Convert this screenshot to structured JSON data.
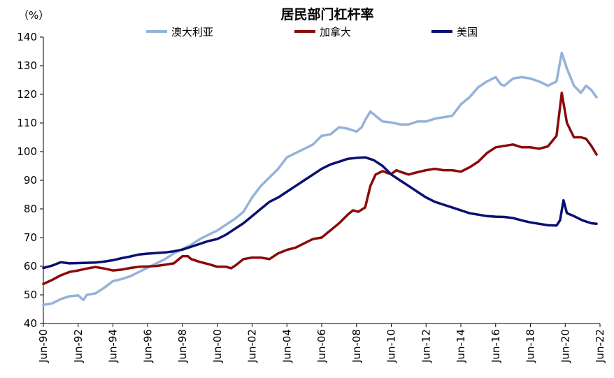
{
  "chart_data": {
    "type": "line",
    "title": "居民部门杠杆率",
    "unit_label": "（%）",
    "ylim": [
      40,
      140
    ],
    "yticks": [
      40,
      50,
      60,
      70,
      80,
      90,
      100,
      110,
      120,
      130,
      140
    ],
    "xlim": [
      1990.5,
      2022.5
    ],
    "xticks": [
      {
        "x": 1990.5,
        "label": "Jun-90"
      },
      {
        "x": 1992.5,
        "label": "Jun-92"
      },
      {
        "x": 1994.5,
        "label": "Jun-94"
      },
      {
        "x": 1996.5,
        "label": "Jun-96"
      },
      {
        "x": 1998.5,
        "label": "Jun-98"
      },
      {
        "x": 2000.5,
        "label": "Jun-00"
      },
      {
        "x": 2002.5,
        "label": "Jun-02"
      },
      {
        "x": 2004.5,
        "label": "Jun-04"
      },
      {
        "x": 2006.5,
        "label": "Jun-06"
      },
      {
        "x": 2008.5,
        "label": "Jun-08"
      },
      {
        "x": 2010.5,
        "label": "Jun-10"
      },
      {
        "x": 2012.5,
        "label": "Jun-12"
      },
      {
        "x": 2014.5,
        "label": "Jun-14"
      },
      {
        "x": 2016.5,
        "label": "Jun-16"
      },
      {
        "x": 2018.5,
        "label": "Jun-18"
      },
      {
        "x": 2020.5,
        "label": "Jun-20"
      },
      {
        "x": 2022.5,
        "label": "Jun-22"
      }
    ],
    "series": [
      {
        "name": "澳大利亚",
        "color": "#94B3D8",
        "points": [
          [
            1990.5,
            46.5
          ],
          [
            1991.0,
            47.0
          ],
          [
            1991.5,
            48.5
          ],
          [
            1992.0,
            49.5
          ],
          [
            1992.5,
            49.8
          ],
          [
            1992.8,
            48.2
          ],
          [
            1993.0,
            50.0
          ],
          [
            1993.5,
            50.5
          ],
          [
            1994.0,
            52.5
          ],
          [
            1994.5,
            54.8
          ],
          [
            1995.0,
            55.5
          ],
          [
            1995.5,
            56.5
          ],
          [
            1996.0,
            58.0
          ],
          [
            1996.5,
            59.5
          ],
          [
            1997.0,
            61.0
          ],
          [
            1997.5,
            62.5
          ],
          [
            1998.0,
            64.5
          ],
          [
            1998.5,
            66.0
          ],
          [
            1999.0,
            67.5
          ],
          [
            1999.5,
            69.5
          ],
          [
            2000.0,
            71.0
          ],
          [
            2000.5,
            72.5
          ],
          [
            2001.0,
            74.5
          ],
          [
            2001.5,
            76.5
          ],
          [
            2002.0,
            79.0
          ],
          [
            2002.5,
            84.0
          ],
          [
            2003.0,
            88.0
          ],
          [
            2003.5,
            91.0
          ],
          [
            2004.0,
            94.0
          ],
          [
            2004.5,
            98.0
          ],
          [
            2005.0,
            99.5
          ],
          [
            2005.5,
            101.0
          ],
          [
            2006.0,
            102.5
          ],
          [
            2006.5,
            105.5
          ],
          [
            2007.0,
            106.0
          ],
          [
            2007.5,
            108.5
          ],
          [
            2008.0,
            108.0
          ],
          [
            2008.5,
            107.0
          ],
          [
            2008.8,
            108.5
          ],
          [
            2009.0,
            111.0
          ],
          [
            2009.3,
            114.0
          ],
          [
            2009.6,
            112.5
          ],
          [
            2010.0,
            110.5
          ],
          [
            2010.5,
            110.2
          ],
          [
            2011.0,
            109.5
          ],
          [
            2011.5,
            109.5
          ],
          [
            2012.0,
            110.5
          ],
          [
            2012.5,
            110.5
          ],
          [
            2013.0,
            111.5
          ],
          [
            2013.5,
            112.0
          ],
          [
            2014.0,
            112.5
          ],
          [
            2014.5,
            116.5
          ],
          [
            2015.0,
            119.0
          ],
          [
            2015.5,
            122.5
          ],
          [
            2016.0,
            124.5
          ],
          [
            2016.5,
            126.0
          ],
          [
            2016.8,
            123.5
          ],
          [
            2017.0,
            123.0
          ],
          [
            2017.5,
            125.5
          ],
          [
            2018.0,
            126.0
          ],
          [
            2018.5,
            125.5
          ],
          [
            2019.0,
            124.5
          ],
          [
            2019.5,
            123.0
          ],
          [
            2020.0,
            124.5
          ],
          [
            2020.3,
            134.5
          ],
          [
            2020.6,
            129.0
          ],
          [
            2021.0,
            123.0
          ],
          [
            2021.4,
            120.5
          ],
          [
            2021.7,
            123.0
          ],
          [
            2022.0,
            121.5
          ],
          [
            2022.3,
            119.0
          ]
        ]
      },
      {
        "name": "加拿大",
        "color": "#8B0A0A",
        "points": [
          [
            1990.5,
            53.8
          ],
          [
            1991.0,
            55.2
          ],
          [
            1991.5,
            56.8
          ],
          [
            1992.0,
            58.0
          ],
          [
            1992.5,
            58.5
          ],
          [
            1993.0,
            59.2
          ],
          [
            1993.5,
            59.7
          ],
          [
            1994.0,
            59.2
          ],
          [
            1994.5,
            58.5
          ],
          [
            1995.0,
            58.8
          ],
          [
            1995.5,
            59.4
          ],
          [
            1996.0,
            59.8
          ],
          [
            1996.5,
            59.9
          ],
          [
            1997.0,
            60.1
          ],
          [
            1997.5,
            60.5
          ],
          [
            1998.0,
            61.0
          ],
          [
            1998.5,
            63.5
          ],
          [
            1998.8,
            63.5
          ],
          [
            1999.0,
            62.5
          ],
          [
            1999.5,
            61.5
          ],
          [
            2000.0,
            60.7
          ],
          [
            2000.5,
            59.8
          ],
          [
            2001.0,
            59.8
          ],
          [
            2001.3,
            59.3
          ],
          [
            2001.6,
            60.5
          ],
          [
            2002.0,
            62.5
          ],
          [
            2002.5,
            63.0
          ],
          [
            2003.0,
            63.0
          ],
          [
            2003.5,
            62.5
          ],
          [
            2004.0,
            64.5
          ],
          [
            2004.5,
            65.7
          ],
          [
            2005.0,
            66.5
          ],
          [
            2005.5,
            68.0
          ],
          [
            2006.0,
            69.5
          ],
          [
            2006.5,
            70.0
          ],
          [
            2007.0,
            72.5
          ],
          [
            2007.5,
            75.0
          ],
          [
            2008.0,
            78.0
          ],
          [
            2008.3,
            79.5
          ],
          [
            2008.6,
            79.0
          ],
          [
            2009.0,
            80.5
          ],
          [
            2009.3,
            88.0
          ],
          [
            2009.6,
            92.0
          ],
          [
            2010.0,
            93.2
          ],
          [
            2010.3,
            92.5
          ],
          [
            2010.5,
            92.2
          ],
          [
            2010.8,
            93.5
          ],
          [
            2011.0,
            93.0
          ],
          [
            2011.5,
            92.0
          ],
          [
            2012.0,
            92.8
          ],
          [
            2012.5,
            93.5
          ],
          [
            2013.0,
            94.0
          ],
          [
            2013.5,
            93.5
          ],
          [
            2014.0,
            93.5
          ],
          [
            2014.5,
            93.0
          ],
          [
            2015.0,
            94.5
          ],
          [
            2015.5,
            96.5
          ],
          [
            2016.0,
            99.5
          ],
          [
            2016.5,
            101.5
          ],
          [
            2017.0,
            102.0
          ],
          [
            2017.5,
            102.5
          ],
          [
            2018.0,
            101.5
          ],
          [
            2018.5,
            101.5
          ],
          [
            2019.0,
            101.0
          ],
          [
            2019.5,
            101.8
          ],
          [
            2020.0,
            105.5
          ],
          [
            2020.3,
            120.5
          ],
          [
            2020.6,
            110.0
          ],
          [
            2021.0,
            105.0
          ],
          [
            2021.4,
            105.0
          ],
          [
            2021.7,
            104.5
          ],
          [
            2022.0,
            102.0
          ],
          [
            2022.3,
            99.0
          ]
        ]
      },
      {
        "name": "美国",
        "color": "#0A1070",
        "points": [
          [
            1990.5,
            59.4
          ],
          [
            1991.0,
            60.2
          ],
          [
            1991.5,
            61.4
          ],
          [
            1992.0,
            61.0
          ],
          [
            1992.5,
            61.1
          ],
          [
            1993.0,
            61.2
          ],
          [
            1993.5,
            61.3
          ],
          [
            1994.0,
            61.6
          ],
          [
            1994.5,
            62.1
          ],
          [
            1995.0,
            62.8
          ],
          [
            1995.5,
            63.4
          ],
          [
            1996.0,
            64.1
          ],
          [
            1996.5,
            64.4
          ],
          [
            1997.0,
            64.6
          ],
          [
            1997.5,
            64.8
          ],
          [
            1998.0,
            65.2
          ],
          [
            1998.5,
            65.8
          ],
          [
            1999.0,
            66.8
          ],
          [
            1999.5,
            67.8
          ],
          [
            2000.0,
            68.8
          ],
          [
            2000.5,
            69.5
          ],
          [
            2001.0,
            71.0
          ],
          [
            2001.5,
            73.0
          ],
          [
            2002.0,
            75.0
          ],
          [
            2002.5,
            77.5
          ],
          [
            2003.0,
            80.0
          ],
          [
            2003.5,
            82.5
          ],
          [
            2004.0,
            84.0
          ],
          [
            2004.5,
            86.0
          ],
          [
            2005.0,
            88.0
          ],
          [
            2005.5,
            90.0
          ],
          [
            2006.0,
            92.0
          ],
          [
            2006.5,
            94.0
          ],
          [
            2007.0,
            95.5
          ],
          [
            2007.5,
            96.5
          ],
          [
            2008.0,
            97.5
          ],
          [
            2008.5,
            97.8
          ],
          [
            2009.0,
            98.0
          ],
          [
            2009.5,
            97.0
          ],
          [
            2010.0,
            95.0
          ],
          [
            2010.5,
            92.0
          ],
          [
            2011.0,
            90.0
          ],
          [
            2011.5,
            88.0
          ],
          [
            2012.0,
            86.0
          ],
          [
            2012.5,
            84.0
          ],
          [
            2013.0,
            82.5
          ],
          [
            2013.5,
            81.5
          ],
          [
            2014.0,
            80.5
          ],
          [
            2014.5,
            79.5
          ],
          [
            2015.0,
            78.5
          ],
          [
            2015.5,
            78.0
          ],
          [
            2016.0,
            77.5
          ],
          [
            2016.5,
            77.3
          ],
          [
            2017.0,
            77.2
          ],
          [
            2017.5,
            76.8
          ],
          [
            2018.0,
            76.0
          ],
          [
            2018.5,
            75.3
          ],
          [
            2019.0,
            74.8
          ],
          [
            2019.5,
            74.3
          ],
          [
            2020.0,
            74.2
          ],
          [
            2020.2,
            76.0
          ],
          [
            2020.4,
            83.0
          ],
          [
            2020.6,
            78.5
          ],
          [
            2021.0,
            77.5
          ],
          [
            2021.5,
            76.0
          ],
          [
            2022.0,
            75.0
          ],
          [
            2022.3,
            74.8
          ]
        ]
      }
    ]
  }
}
